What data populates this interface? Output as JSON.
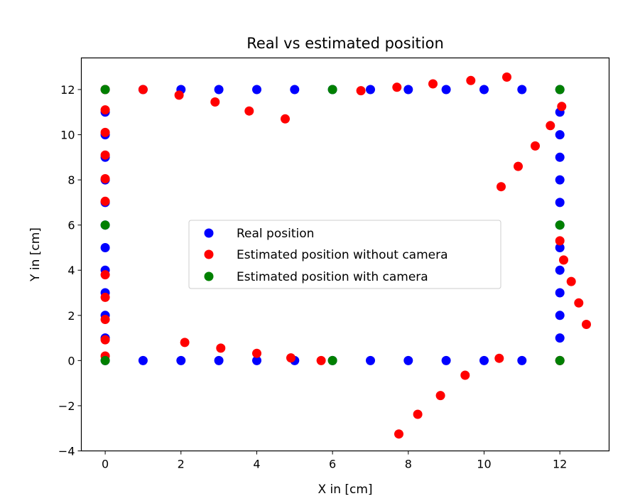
{
  "chart_data": {
    "type": "scatter",
    "title": "Real vs estimated position",
    "xlabel": "X in [cm]",
    "ylabel": "Y in [cm]",
    "xlim": [
      -0.63,
      13.3
    ],
    "ylim": [
      -4.0,
      13.4
    ],
    "xticks": [
      0,
      2,
      4,
      6,
      8,
      10,
      12
    ],
    "yticks": [
      -4,
      -2,
      0,
      2,
      4,
      6,
      8,
      10,
      12
    ],
    "grid": false,
    "legend_position": "center",
    "series": [
      {
        "name": "Real position",
        "color": "#0000ff",
        "points": [
          [
            0,
            0
          ],
          [
            1,
            0
          ],
          [
            2,
            0
          ],
          [
            3,
            0
          ],
          [
            4,
            0
          ],
          [
            5,
            0
          ],
          [
            6,
            0
          ],
          [
            7,
            0
          ],
          [
            8,
            0
          ],
          [
            9,
            0
          ],
          [
            10,
            0
          ],
          [
            11,
            0
          ],
          [
            12,
            0
          ],
          [
            12,
            1
          ],
          [
            12,
            2
          ],
          [
            12,
            3
          ],
          [
            12,
            4
          ],
          [
            12,
            5
          ],
          [
            12,
            6
          ],
          [
            12,
            7
          ],
          [
            12,
            8
          ],
          [
            12,
            9
          ],
          [
            12,
            10
          ],
          [
            12,
            11
          ],
          [
            12,
            12
          ],
          [
            11,
            12
          ],
          [
            10,
            12
          ],
          [
            9,
            12
          ],
          [
            8,
            12
          ],
          [
            7,
            12
          ],
          [
            6,
            12
          ],
          [
            5,
            12
          ],
          [
            4,
            12
          ],
          [
            3,
            12
          ],
          [
            2,
            12
          ],
          [
            1,
            12
          ],
          [
            0,
            12
          ],
          [
            0,
            11
          ],
          [
            0,
            10
          ],
          [
            0,
            9
          ],
          [
            0,
            8
          ],
          [
            0,
            7
          ],
          [
            0,
            6
          ],
          [
            0,
            5
          ],
          [
            0,
            4
          ],
          [
            0,
            3
          ],
          [
            0,
            2
          ],
          [
            0,
            1
          ]
        ]
      },
      {
        "name": "Estimated position without camera",
        "color": "#ff0000",
        "points": [
          [
            0,
            0.2
          ],
          [
            2.1,
            0.8
          ],
          [
            3.05,
            0.55
          ],
          [
            4.0,
            0.32
          ],
          [
            4.9,
            0.12
          ],
          [
            5.7,
            0.0
          ],
          [
            10.4,
            0.1
          ],
          [
            9.5,
            -0.65
          ],
          [
            8.85,
            -1.55
          ],
          [
            8.25,
            -2.38
          ],
          [
            7.75,
            -3.25
          ],
          [
            12.0,
            0.0
          ],
          [
            12.7,
            1.6
          ],
          [
            12.5,
            2.55
          ],
          [
            12.3,
            3.5
          ],
          [
            12.1,
            4.45
          ],
          [
            12.0,
            5.3
          ],
          [
            10.45,
            7.7
          ],
          [
            10.9,
            8.6
          ],
          [
            11.35,
            9.5
          ],
          [
            11.75,
            10.4
          ],
          [
            12.05,
            11.25
          ],
          [
            10.6,
            12.55
          ],
          [
            9.65,
            12.4
          ],
          [
            8.65,
            12.25
          ],
          [
            7.7,
            12.1
          ],
          [
            6.75,
            11.95
          ],
          [
            4.75,
            10.7
          ],
          [
            3.8,
            11.05
          ],
          [
            2.9,
            11.45
          ],
          [
            1.95,
            11.75
          ],
          [
            1.0,
            12.0
          ],
          [
            0,
            12.0
          ],
          [
            0,
            11.1
          ],
          [
            0,
            10.1
          ],
          [
            0,
            9.1
          ],
          [
            0,
            8.05
          ],
          [
            0,
            7.05
          ],
          [
            0,
            3.8
          ],
          [
            0,
            2.8
          ],
          [
            0,
            1.82
          ],
          [
            0,
            0.92
          ]
        ]
      },
      {
        "name": "Estimated position with camera",
        "color": "#008000",
        "points": [
          [
            0,
            0
          ],
          [
            6,
            0
          ],
          [
            12,
            0
          ],
          [
            12,
            6
          ],
          [
            12,
            12
          ],
          [
            6,
            12
          ],
          [
            0,
            12
          ],
          [
            0,
            6
          ]
        ]
      }
    ]
  }
}
